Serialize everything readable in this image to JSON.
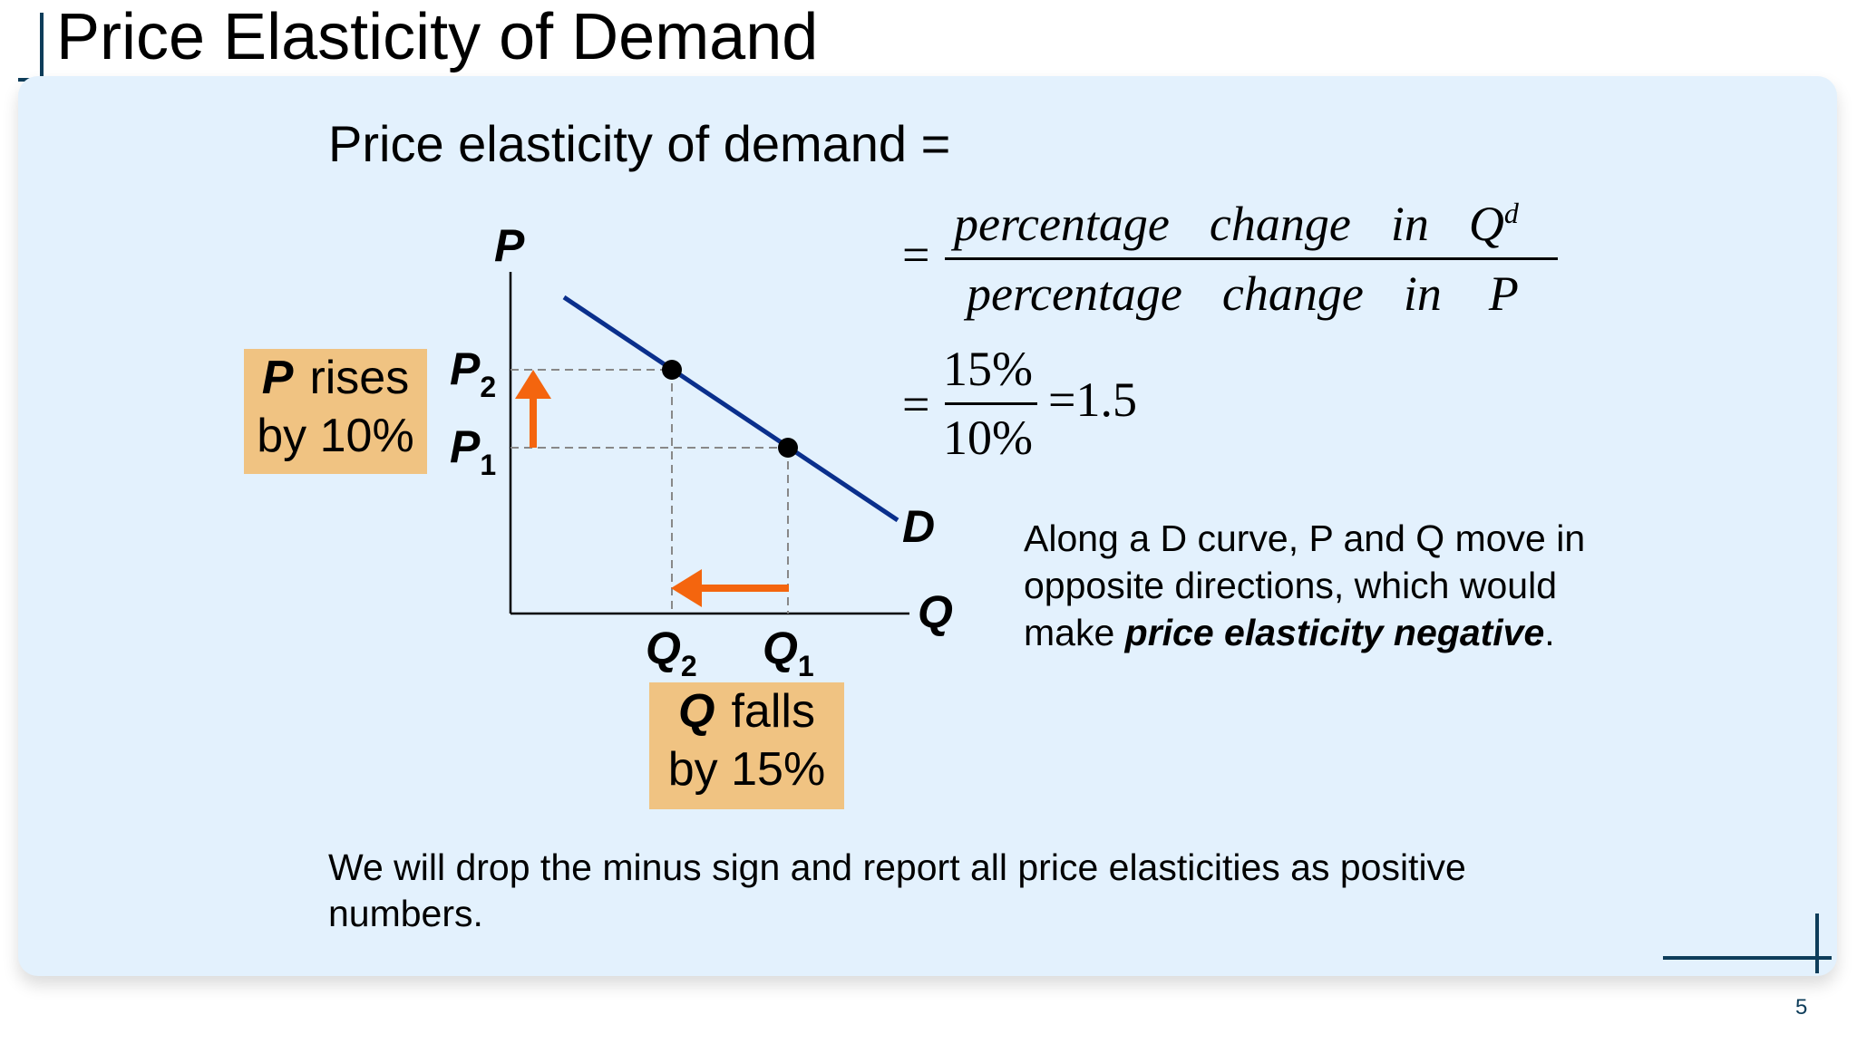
{
  "slide": {
    "title": "Price Elasticity of Demand",
    "heading": "Price elasticity of demand =",
    "page_number": "5"
  },
  "diagram": {
    "y_axis_label": "P",
    "x_axis_label": "Q",
    "curve_label": "D",
    "p2_label": "P",
    "p2_sub": "2",
    "p1_label": "P",
    "p1_sub": "1",
    "q2_label": "Q",
    "q2_sub": "2",
    "q1_label": "Q",
    "q1_sub": "1",
    "curve_color": "#0a2f8c",
    "arrow_color": "#f4650e"
  },
  "price_box": {
    "bold": "P",
    "line1": "rises",
    "line2": "by 10%"
  },
  "quantity_box": {
    "bold": "Q",
    "line1": "falls",
    "line2": "by 15%"
  },
  "formula": {
    "equals": "=",
    "numerator_words": [
      "percentage",
      "change",
      "in"
    ],
    "numerator_var": "Q",
    "numerator_sup": "d",
    "denominator_words": [
      "percentage",
      "change",
      "in",
      "P"
    ],
    "numeric_numerator": "15%",
    "numeric_denominator": "10%",
    "result": "=1.5"
  },
  "note": {
    "text_before": "Along a D curve, P and Q move in opposite directions, which would make ",
    "bold_text": "price elasticity negative",
    "text_after": "."
  },
  "footer": "We will drop the minus sign and report all price elasticities as positive numbers."
}
